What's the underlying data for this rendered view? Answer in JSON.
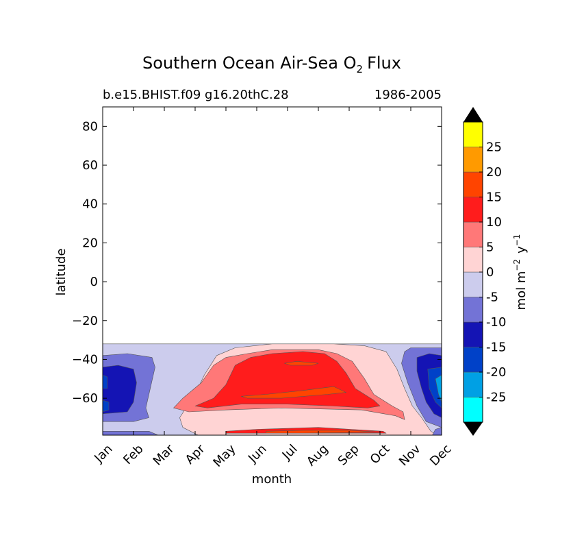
{
  "chart_data": {
    "type": "heatmap",
    "title_main": "Southern Ocean Air-Sea O",
    "title_sub_script": "2",
    "title_tail": "Flux",
    "subtitle_left": "b.e15.BHIST.f09 g16.20thC.28",
    "subtitle_right": "1986-2005",
    "xlabel": "month",
    "ylabel": "latitude",
    "x_tick_labels": [
      "Jan",
      "Feb",
      "Mar",
      "Apr",
      "May",
      "Jun",
      "Jul",
      "Aug",
      "Sep",
      "Oct",
      "Nov",
      "Dec"
    ],
    "x_range": [
      0,
      11
    ],
    "y_ticks": [
      80,
      60,
      40,
      20,
      0,
      -20,
      -40,
      -60
    ],
    "y_tick_labels": [
      "80",
      "60",
      "40",
      "20",
      "0",
      "−20",
      "−40",
      "−60"
    ],
    "ylim": [
      -79,
      90
    ],
    "data_lat_max": -32,
    "colorbar": {
      "label_main": "mol m",
      "label_exp1": "−2",
      "label_mid": "y",
      "label_exp2": "−1",
      "levels": [
        -30,
        -25,
        -20,
        -15,
        -10,
        -5,
        0,
        5,
        10,
        15,
        20,
        25,
        30
      ],
      "tick_labels": [
        "-25",
        "-20",
        "-15",
        "-10",
        "-5",
        "0",
        "5",
        "10",
        "15",
        "20",
        "25"
      ],
      "colors": [
        "#00ffff",
        "#00a0e4",
        "#0041c8",
        "#1414b4",
        "#7373d6",
        "#cccced",
        "#ffd4d4",
        "#ff7878",
        "#ff1c1c",
        "#ff4400",
        "#ff9a00",
        "#ffff00"
      ],
      "extend": "both",
      "extend_color": "#000000"
    },
    "regions": [
      {
        "level": -5,
        "points": [
          [
            0,
            -32
          ],
          [
            11,
            -32
          ],
          [
            11,
            -79
          ],
          [
            0,
            -79
          ]
        ]
      },
      {
        "level": 0,
        "points": [
          [
            3.1,
            -79
          ],
          [
            2.6,
            -75
          ],
          [
            2.5,
            -70
          ],
          [
            2.7,
            -65
          ],
          [
            3.0,
            -58
          ],
          [
            3.3,
            -48
          ],
          [
            3.7,
            -38
          ],
          [
            4.3,
            -34
          ],
          [
            5.5,
            -32
          ],
          [
            7.5,
            -32
          ],
          [
            8.5,
            -33
          ],
          [
            9.2,
            -36
          ],
          [
            9.55,
            -45
          ],
          [
            9.8,
            -55
          ],
          [
            10.05,
            -64
          ],
          [
            10.35,
            -70
          ],
          [
            10.65,
            -77
          ],
          [
            10.85,
            -79
          ]
        ]
      },
      {
        "level": 5,
        "points": [
          [
            2.3,
            -65
          ],
          [
            2.6,
            -60
          ],
          [
            3.2,
            -52
          ],
          [
            3.6,
            -43
          ],
          [
            4.0,
            -39
          ],
          [
            4.7,
            -37
          ],
          [
            5.5,
            -35
          ],
          [
            7.0,
            -35
          ],
          [
            7.6,
            -37
          ],
          [
            8.1,
            -41
          ],
          [
            8.5,
            -50
          ],
          [
            8.8,
            -58
          ],
          [
            9.4,
            -64
          ],
          [
            9.75,
            -67
          ],
          [
            9.8,
            -71
          ],
          [
            9.5,
            -69
          ],
          [
            8.4,
            -66
          ],
          [
            5.8,
            -65
          ],
          [
            4.0,
            -66
          ],
          [
            2.8,
            -67
          ]
        ]
      },
      {
        "level": 10,
        "points": [
          [
            3.0,
            -64
          ],
          [
            3.6,
            -60
          ],
          [
            4.0,
            -53
          ],
          [
            4.3,
            -43
          ],
          [
            4.8,
            -39
          ],
          [
            5.5,
            -37
          ],
          [
            6.5,
            -36
          ],
          [
            7.2,
            -37
          ],
          [
            7.6,
            -41
          ],
          [
            7.9,
            -47
          ],
          [
            8.2,
            -55
          ],
          [
            8.8,
            -61
          ],
          [
            9.0,
            -64
          ],
          [
            8.6,
            -65
          ],
          [
            7.5,
            -64
          ],
          [
            6.0,
            -63
          ],
          [
            4.5,
            -63
          ],
          [
            3.4,
            -65
          ]
        ]
      },
      {
        "level": 15,
        "points": [
          [
            4.5,
            -59
          ],
          [
            5.3,
            -58
          ],
          [
            6.5,
            -56
          ],
          [
            7.5,
            -54
          ],
          [
            7.9,
            -57
          ],
          [
            7.3,
            -58
          ],
          [
            5.8,
            -60
          ],
          [
            4.7,
            -60
          ]
        ]
      },
      {
        "level": 15,
        "points": [
          [
            5.9,
            -42
          ],
          [
            6.3,
            -41
          ],
          [
            7.0,
            -42
          ],
          [
            6.8,
            -43
          ],
          [
            6.1,
            -43
          ]
        ]
      },
      {
        "level": 10,
        "points": [
          [
            4.0,
            -77
          ],
          [
            5.0,
            -76
          ],
          [
            7.0,
            -75
          ],
          [
            9.1,
            -77
          ],
          [
            9.2,
            -78
          ],
          [
            7.0,
            -78
          ],
          [
            5.0,
            -78
          ],
          [
            4.0,
            -78
          ]
        ]
      },
      {
        "level": 15,
        "points": [
          [
            5.3,
            -77
          ],
          [
            6.5,
            -76.5
          ],
          [
            8.0,
            -76.5
          ],
          [
            9.0,
            -77.5
          ],
          [
            6.5,
            -78
          ],
          [
            5.3,
            -78
          ]
        ]
      },
      {
        "level": -10,
        "points": [
          [
            0,
            -38
          ],
          [
            0.8,
            -37
          ],
          [
            1.6,
            -39
          ],
          [
            1.7,
            -44
          ],
          [
            1.5,
            -58
          ],
          [
            1.4,
            -65
          ],
          [
            1.5,
            -70
          ],
          [
            1.0,
            -72
          ],
          [
            0,
            -72
          ]
        ]
      },
      {
        "level": -15,
        "points": [
          [
            0,
            -44
          ],
          [
            0.5,
            -43
          ],
          [
            1.0,
            -45
          ],
          [
            1.1,
            -52
          ],
          [
            1.0,
            -62
          ],
          [
            0.8,
            -67
          ],
          [
            0,
            -68
          ]
        ]
      },
      {
        "level": -20,
        "points": [
          [
            0,
            -48
          ],
          [
            0.15,
            -49
          ],
          [
            0.15,
            -55
          ],
          [
            0,
            -55
          ]
        ]
      },
      {
        "level": -20,
        "points": [
          [
            0,
            -61
          ],
          [
            0.2,
            -62
          ],
          [
            0.2,
            -66
          ],
          [
            0,
            -67
          ]
        ]
      },
      {
        "level": -10,
        "points": [
          [
            0,
            -77
          ],
          [
            1.5,
            -77
          ],
          [
            1.8,
            -79
          ],
          [
            0,
            -79
          ]
        ]
      },
      {
        "level": -10,
        "points": [
          [
            9.8,
            -36
          ],
          [
            10.0,
            -34
          ],
          [
            11,
            -34
          ],
          [
            11,
            -75
          ],
          [
            10.5,
            -72
          ],
          [
            10.2,
            -64
          ],
          [
            9.9,
            -52
          ],
          [
            9.7,
            -42
          ]
        ]
      },
      {
        "level": -15,
        "points": [
          [
            10.2,
            -39
          ],
          [
            10.6,
            -37
          ],
          [
            11,
            -38
          ],
          [
            11,
            -70
          ],
          [
            10.75,
            -68
          ],
          [
            10.5,
            -62
          ],
          [
            10.35,
            -55
          ],
          [
            10.2,
            -46
          ]
        ]
      },
      {
        "level": -20,
        "points": [
          [
            10.55,
            -45
          ],
          [
            11,
            -44
          ],
          [
            11,
            -65
          ],
          [
            10.8,
            -62
          ],
          [
            10.6,
            -55
          ]
        ]
      },
      {
        "level": -25,
        "points": [
          [
            10.8,
            -50
          ],
          [
            11,
            -48
          ],
          [
            11,
            -62
          ],
          [
            10.9,
            -58
          ]
        ]
      },
      {
        "level": -10,
        "points": [
          [
            10.7,
            -79
          ],
          [
            10.8,
            -76
          ],
          [
            11,
            -75
          ],
          [
            11,
            -79
          ]
        ]
      }
    ]
  }
}
